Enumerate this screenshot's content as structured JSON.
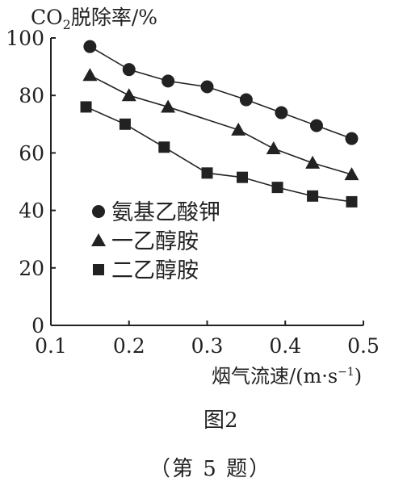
{
  "chart_data": {
    "type": "line",
    "ylabel_main": "CO",
    "ylabel_sub": "2",
    "ylabel_rest": "脱除率/%",
    "xlabel_main": "烟气流速/(m·s",
    "xlabel_sup": "−1",
    "xlabel_end": ")",
    "xlim": [
      0.1,
      0.5
    ],
    "ylim": [
      0,
      100
    ],
    "xticks": [
      "0.1",
      "0.2",
      "0.3",
      "0.4",
      "0.5"
    ],
    "yticks": [
      "0",
      "20",
      "40",
      "60",
      "80",
      "100"
    ],
    "legend_placement": "left-center",
    "grid": false,
    "series": [
      {
        "name": "氨基乙酸钾",
        "marker": "circle",
        "x": [
          0.15,
          0.2,
          0.25,
          0.3,
          0.35,
          0.395,
          0.44,
          0.485
        ],
        "y": [
          97,
          89,
          85,
          83,
          78.5,
          74,
          69.5,
          65
        ]
      },
      {
        "name": "一乙醇胺",
        "marker": "triangle",
        "x": [
          0.15,
          0.2,
          0.25,
          0.34,
          0.385,
          0.435,
          0.485
        ],
        "y": [
          87,
          80,
          76,
          68,
          61.5,
          56.5,
          52.5
        ]
      },
      {
        "name": "二乙醇胺",
        "marker": "square",
        "x": [
          0.145,
          0.195,
          0.245,
          0.3,
          0.345,
          0.39,
          0.435,
          0.485
        ],
        "y": [
          76,
          70,
          62,
          53,
          51.5,
          48,
          45,
          43
        ]
      }
    ]
  },
  "caption": "图2",
  "footnote": "（第 5 题）"
}
